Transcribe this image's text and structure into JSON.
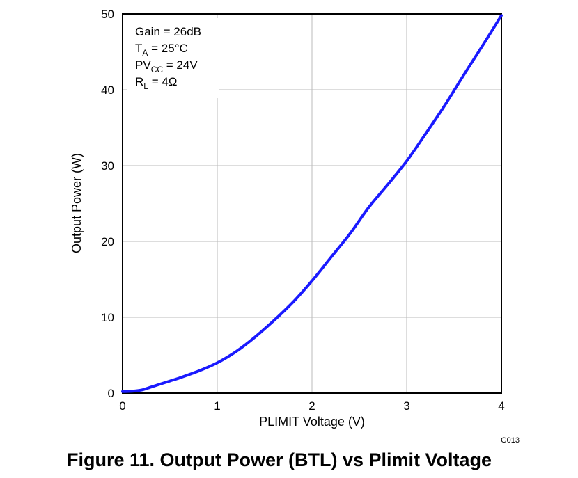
{
  "chart_data": {
    "type": "line",
    "xlabel": "PLIMIT Voltage (V)",
    "ylabel": "Output Power (W)",
    "xlim": [
      0,
      4
    ],
    "ylim": [
      0,
      50
    ],
    "x_ticks": [
      "0",
      "1",
      "2",
      "3",
      "4"
    ],
    "y_ticks": [
      "0",
      "10",
      "20",
      "30",
      "40",
      "50"
    ],
    "grid": true,
    "series_color": "#1a1aff",
    "series": [
      {
        "x": [
          0,
          0.1,
          0.2,
          0.3,
          0.4,
          0.5,
          0.6,
          0.8,
          1.0,
          1.2,
          1.4,
          1.6,
          1.8,
          2.0,
          2.2,
          2.4,
          2.6,
          2.8,
          3.0,
          3.2,
          3.4,
          3.6,
          3.8,
          4.0
        ],
        "y": [
          0.2,
          0.25,
          0.4,
          0.8,
          1.2,
          1.6,
          2.0,
          2.9,
          4.0,
          5.5,
          7.4,
          9.6,
          12.0,
          14.8,
          17.9,
          21.0,
          24.5,
          27.5,
          30.6,
          34.2,
          37.9,
          41.9,
          45.8,
          49.8
        ]
      }
    ],
    "annotation": {
      "line1": "Gain = 26dB",
      "line2_main": "T",
      "line2_sub": "A",
      "line2_rest": " = 25°C",
      "line3_main": "PV",
      "line3_sub": "CC",
      "line3_rest": " = 24V",
      "line4_main": "R",
      "line4_sub": "L",
      "line4_rest": " = 4Ω"
    },
    "code": "G013"
  },
  "caption": "Figure 11. Output Power (BTL) vs Plimit Voltage"
}
